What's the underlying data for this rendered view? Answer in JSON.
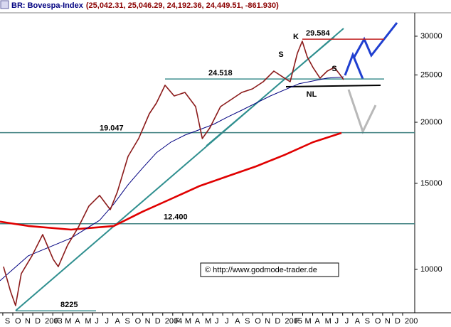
{
  "chart_data": {
    "type": "line",
    "title": "BR: Bovespa-Index",
    "quote": "(25,042.31, 25,046.29, 24,192.36, 24,449.51, -861.930)",
    "log_scale": true,
    "grid": false,
    "xlim": [
      -0.28,
      41.21
    ],
    "ylim": [
      8150,
      33500
    ],
    "yticks": [
      10000,
      15000,
      20000,
      25000,
      30000
    ],
    "xticks": [
      {
        "value": 0,
        "label": "S"
      },
      {
        "value": 1,
        "label": "O"
      },
      {
        "value": 2,
        "label": "N"
      },
      {
        "value": 3,
        "label": "D"
      },
      {
        "value": 4,
        "label": "2003"
      },
      {
        "value": 5,
        "label": "F"
      },
      {
        "value": 6,
        "label": "M"
      },
      {
        "value": 7,
        "label": "A"
      },
      {
        "value": 8,
        "label": "M"
      },
      {
        "value": 9,
        "label": "J"
      },
      {
        "value": 10,
        "label": "J"
      },
      {
        "value": 11,
        "label": "A"
      },
      {
        "value": 12,
        "label": "S"
      },
      {
        "value": 13,
        "label": "O"
      },
      {
        "value": 14,
        "label": "N"
      },
      {
        "value": 15,
        "label": "D"
      },
      {
        "value": 16,
        "label": "2004"
      },
      {
        "value": 17,
        "label": "F"
      },
      {
        "value": 18,
        "label": "M"
      },
      {
        "value": 19,
        "label": "A"
      },
      {
        "value": 20,
        "label": "M"
      },
      {
        "value": 21,
        "label": "J"
      },
      {
        "value": 22,
        "label": "J"
      },
      {
        "value": 23,
        "label": "A"
      },
      {
        "value": 24,
        "label": "S"
      },
      {
        "value": 25,
        "label": "O"
      },
      {
        "value": 26,
        "label": "N"
      },
      {
        "value": 27,
        "label": "D"
      },
      {
        "value": 28,
        "label": "2005"
      },
      {
        "value": 29,
        "label": "F"
      },
      {
        "value": 30,
        "label": "M"
      },
      {
        "value": 31,
        "label": "A"
      },
      {
        "value": 32,
        "label": "M"
      },
      {
        "value": 33,
        "label": "J"
      },
      {
        "value": 34,
        "label": "J"
      },
      {
        "value": 35,
        "label": "A"
      },
      {
        "value": 36,
        "label": "S"
      },
      {
        "value": 37,
        "label": "O"
      },
      {
        "value": 38,
        "label": "N"
      },
      {
        "value": 39,
        "label": "D"
      },
      {
        "value": 40,
        "label": "200"
      }
    ],
    "series": [
      {
        "color": "#8b1a1a",
        "width": 1.6,
        "x": [
          0.07,
          0.78,
          1.28,
          1.85,
          2.92,
          3.99,
          5.05,
          5.55,
          6.48,
          7.54,
          8.61,
          9.68,
          10.75,
          11.46,
          12.53,
          13.59,
          14.66,
          15.37,
          16.23,
          17.15,
          18.22,
          19.29,
          19.96,
          20.71,
          21.78,
          22.85,
          23.91,
          24.98,
          26.05,
          27.12,
          28.19,
          28.75,
          29.47,
          29.96,
          30.46,
          31.03,
          31.74,
          32.46,
          33.17,
          33.74,
          34.09
        ],
        "values": [
          10130,
          9010,
          8430,
          9800,
          10660,
          11780,
          10480,
          10130,
          11210,
          12180,
          13470,
          14170,
          13250,
          14410,
          17030,
          18520,
          20820,
          21890,
          23810,
          22640,
          23020,
          21530,
          18520,
          19470,
          21530,
          22260,
          23020,
          23410,
          24210,
          25450,
          24620,
          24210,
          27680,
          29300,
          27220,
          25890,
          24620,
          25450,
          25890,
          25030,
          24450
        ]
      },
      {
        "color": "#000080",
        "width": 1,
        "x": [
          -0.28,
          2.56,
          6.83,
          9.68,
          11.1,
          12.53,
          13.95,
          15.37,
          16.8,
          18.22,
          19.64,
          21.07,
          22.49,
          23.91,
          25.34,
          26.76,
          28.19,
          29.61,
          31.03,
          32.46,
          33.88,
          34.09
        ],
        "values": [
          9480,
          10660,
          11590,
          12600,
          13600,
          14900,
          16100,
          17320,
          18200,
          18830,
          19300,
          19800,
          20500,
          21170,
          21900,
          22640,
          23300,
          23970,
          24300,
          24620,
          24750,
          24780
        ]
      },
      {
        "color": "#e00000",
        "width": 2.6,
        "x": [
          -0.28,
          2.56,
          6.83,
          11.1,
          13.95,
          16.8,
          19.64,
          22.49,
          25.34,
          28.19,
          31.03,
          33.88
        ],
        "values": [
          12520,
          12270,
          12060,
          12270,
          13120,
          13930,
          14800,
          15510,
          16250,
          17150,
          18210,
          19020
        ]
      }
    ],
    "levels": [
      {
        "value": 12400,
        "label": "12.400",
        "color": "#3f8080"
      },
      {
        "value": 19047,
        "label": "19.047",
        "color": "#3f8080"
      },
      {
        "value": 24518,
        "label": "24.518",
        "color": "#3f8f8f"
      },
      {
        "value": 29584,
        "label": "29.584",
        "color": "#c02020"
      },
      {
        "value": 8225,
        "label": "8225",
        "color": "#3f8f8f"
      }
    ],
    "annotations": [
      "S",
      "K",
      "S",
      "NL"
    ],
    "copyright": "© http://www.godmode-trader.de"
  }
}
